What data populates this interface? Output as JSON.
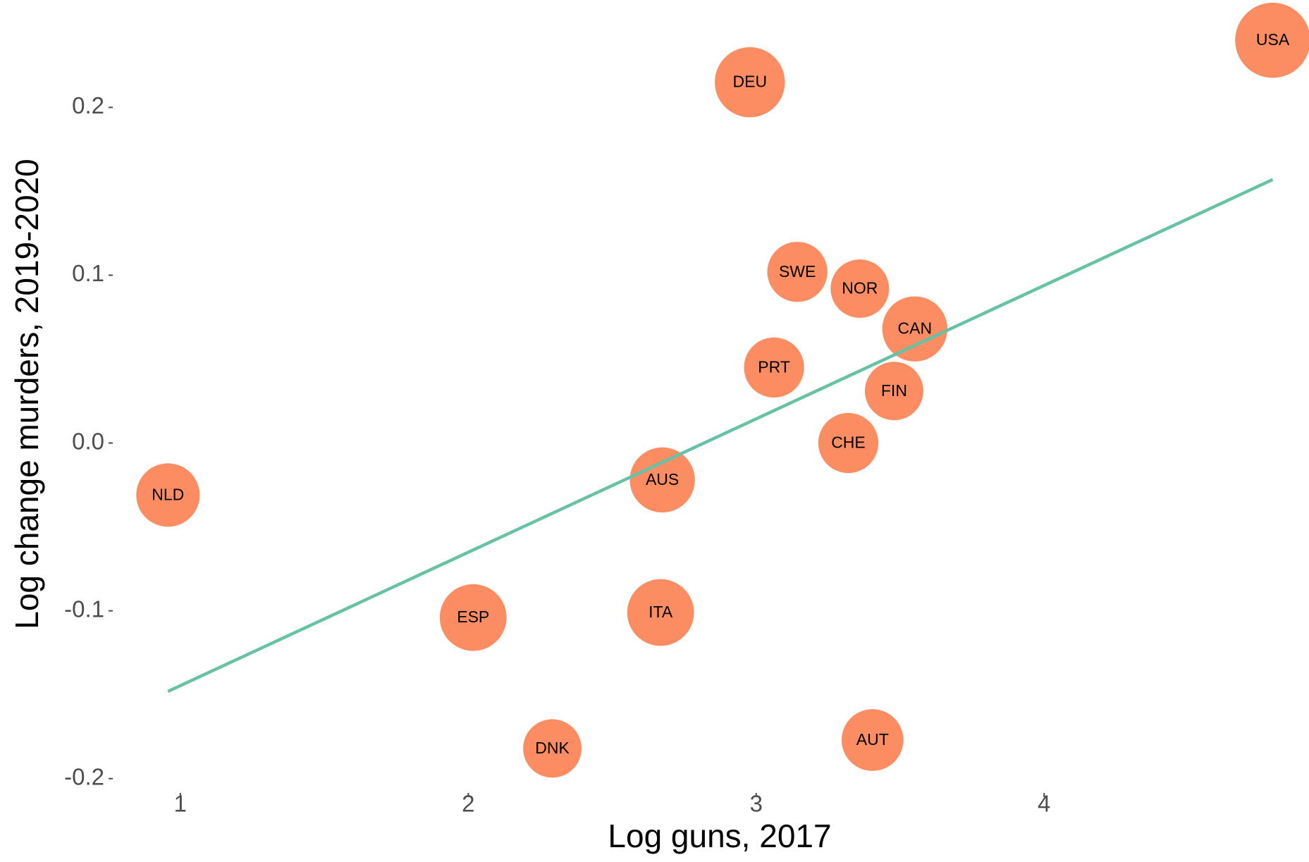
{
  "chart_data": {
    "type": "scatter",
    "xlabel": "Log guns, 2017",
    "ylabel": "Log change murders, 2019-2020",
    "labels": [
      "USA",
      "DEU",
      "SWE",
      "NOR",
      "CAN",
      "PRT",
      "FIN",
      "CHE",
      "AUS",
      "NLD",
      "ESP",
      "ITA",
      "DNK",
      "AUT"
    ],
    "x": [
      4.794,
      2.978,
      3.143,
      3.36,
      3.551,
      3.062,
      3.479,
      3.32,
      2.674,
      0.957,
      2.017,
      2.668,
      2.292,
      3.404
    ],
    "y": [
      0.24,
      0.215,
      0.102,
      0.092,
      0.068,
      0.045,
      0.031,
      0.0,
      -0.022,
      -0.031,
      -0.104,
      -0.101,
      -0.182,
      -0.177
    ],
    "sizes": [
      45,
      42,
      36,
      35,
      39,
      36,
      35,
      36,
      39,
      38,
      40,
      40,
      35,
      37
    ],
    "color": "#fc8d62",
    "trend_line": {
      "x": [
        0.957,
        4.794
      ],
      "y": [
        -0.148,
        0.157
      ],
      "color": "#66c2a5"
    },
    "xlim": [
      0.78,
      4.92
    ],
    "ylim": [
      -0.206,
      0.264
    ],
    "xticks": [
      1,
      2,
      3,
      4
    ],
    "yticks": [
      0.2,
      0.1,
      {
        "value": 0.0,
        "label": "0.0"
      },
      -0.1,
      -0.2
    ],
    "grid": false
  }
}
